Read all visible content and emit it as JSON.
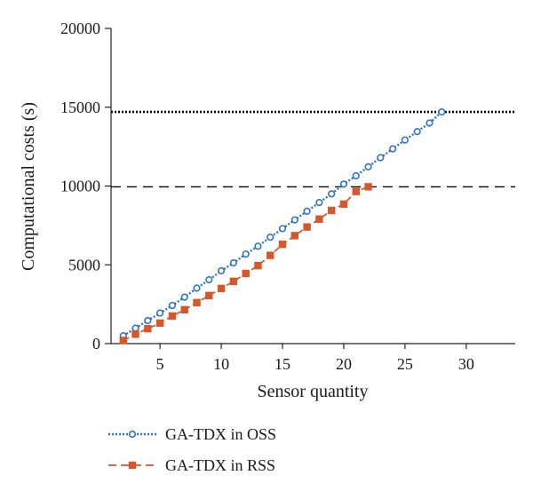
{
  "chart_data": {
    "type": "line",
    "xlabel": "Sensor quantity",
    "ylabel": "Computational costs (s)",
    "xlim": [
      1,
      34
    ],
    "ylim": [
      0,
      20000
    ],
    "xticks": [
      5,
      10,
      15,
      20,
      25,
      30
    ],
    "yticks": [
      0,
      5000,
      10000,
      15000,
      20000
    ],
    "grid": false,
    "legend_position": "bottom-left",
    "series": [
      {
        "name": "GA-TDX in OSS",
        "color": "#2e74c4",
        "style": "dotted",
        "marker": "circle",
        "x": [
          2,
          3,
          4,
          5,
          6,
          7,
          8,
          9,
          10,
          11,
          12,
          13,
          14,
          15,
          16,
          17,
          18,
          19,
          20,
          21,
          22,
          23,
          24,
          25,
          26,
          27,
          28
        ],
        "values": [
          500,
          980,
          1460,
          1940,
          2420,
          2950,
          3520,
          4050,
          4620,
          5120,
          5680,
          6180,
          6750,
          7300,
          7850,
          8400,
          8950,
          9500,
          10120,
          10650,
          11220,
          11800,
          12360,
          12920,
          13450,
          14000,
          14700
        ]
      },
      {
        "name": "GA-TDX in RSS",
        "color": "#d4582a",
        "style": "dashed",
        "marker": "square",
        "x": [
          2,
          3,
          4,
          5,
          6,
          7,
          8,
          9,
          10,
          11,
          12,
          13,
          14,
          15,
          16,
          17,
          18,
          19,
          20,
          21,
          22
        ],
        "values": [
          200,
          600,
          950,
          1300,
          1750,
          2150,
          2600,
          3050,
          3500,
          3950,
          4450,
          4950,
          5600,
          6300,
          6850,
          7400,
          7900,
          8450,
          8850,
          9650,
          9950
        ]
      }
    ],
    "reference_lines": [
      {
        "y": 14700,
        "style": "dotted",
        "color": "#000000"
      },
      {
        "y": 9950,
        "style": "dashed",
        "color": "#000000"
      }
    ]
  }
}
